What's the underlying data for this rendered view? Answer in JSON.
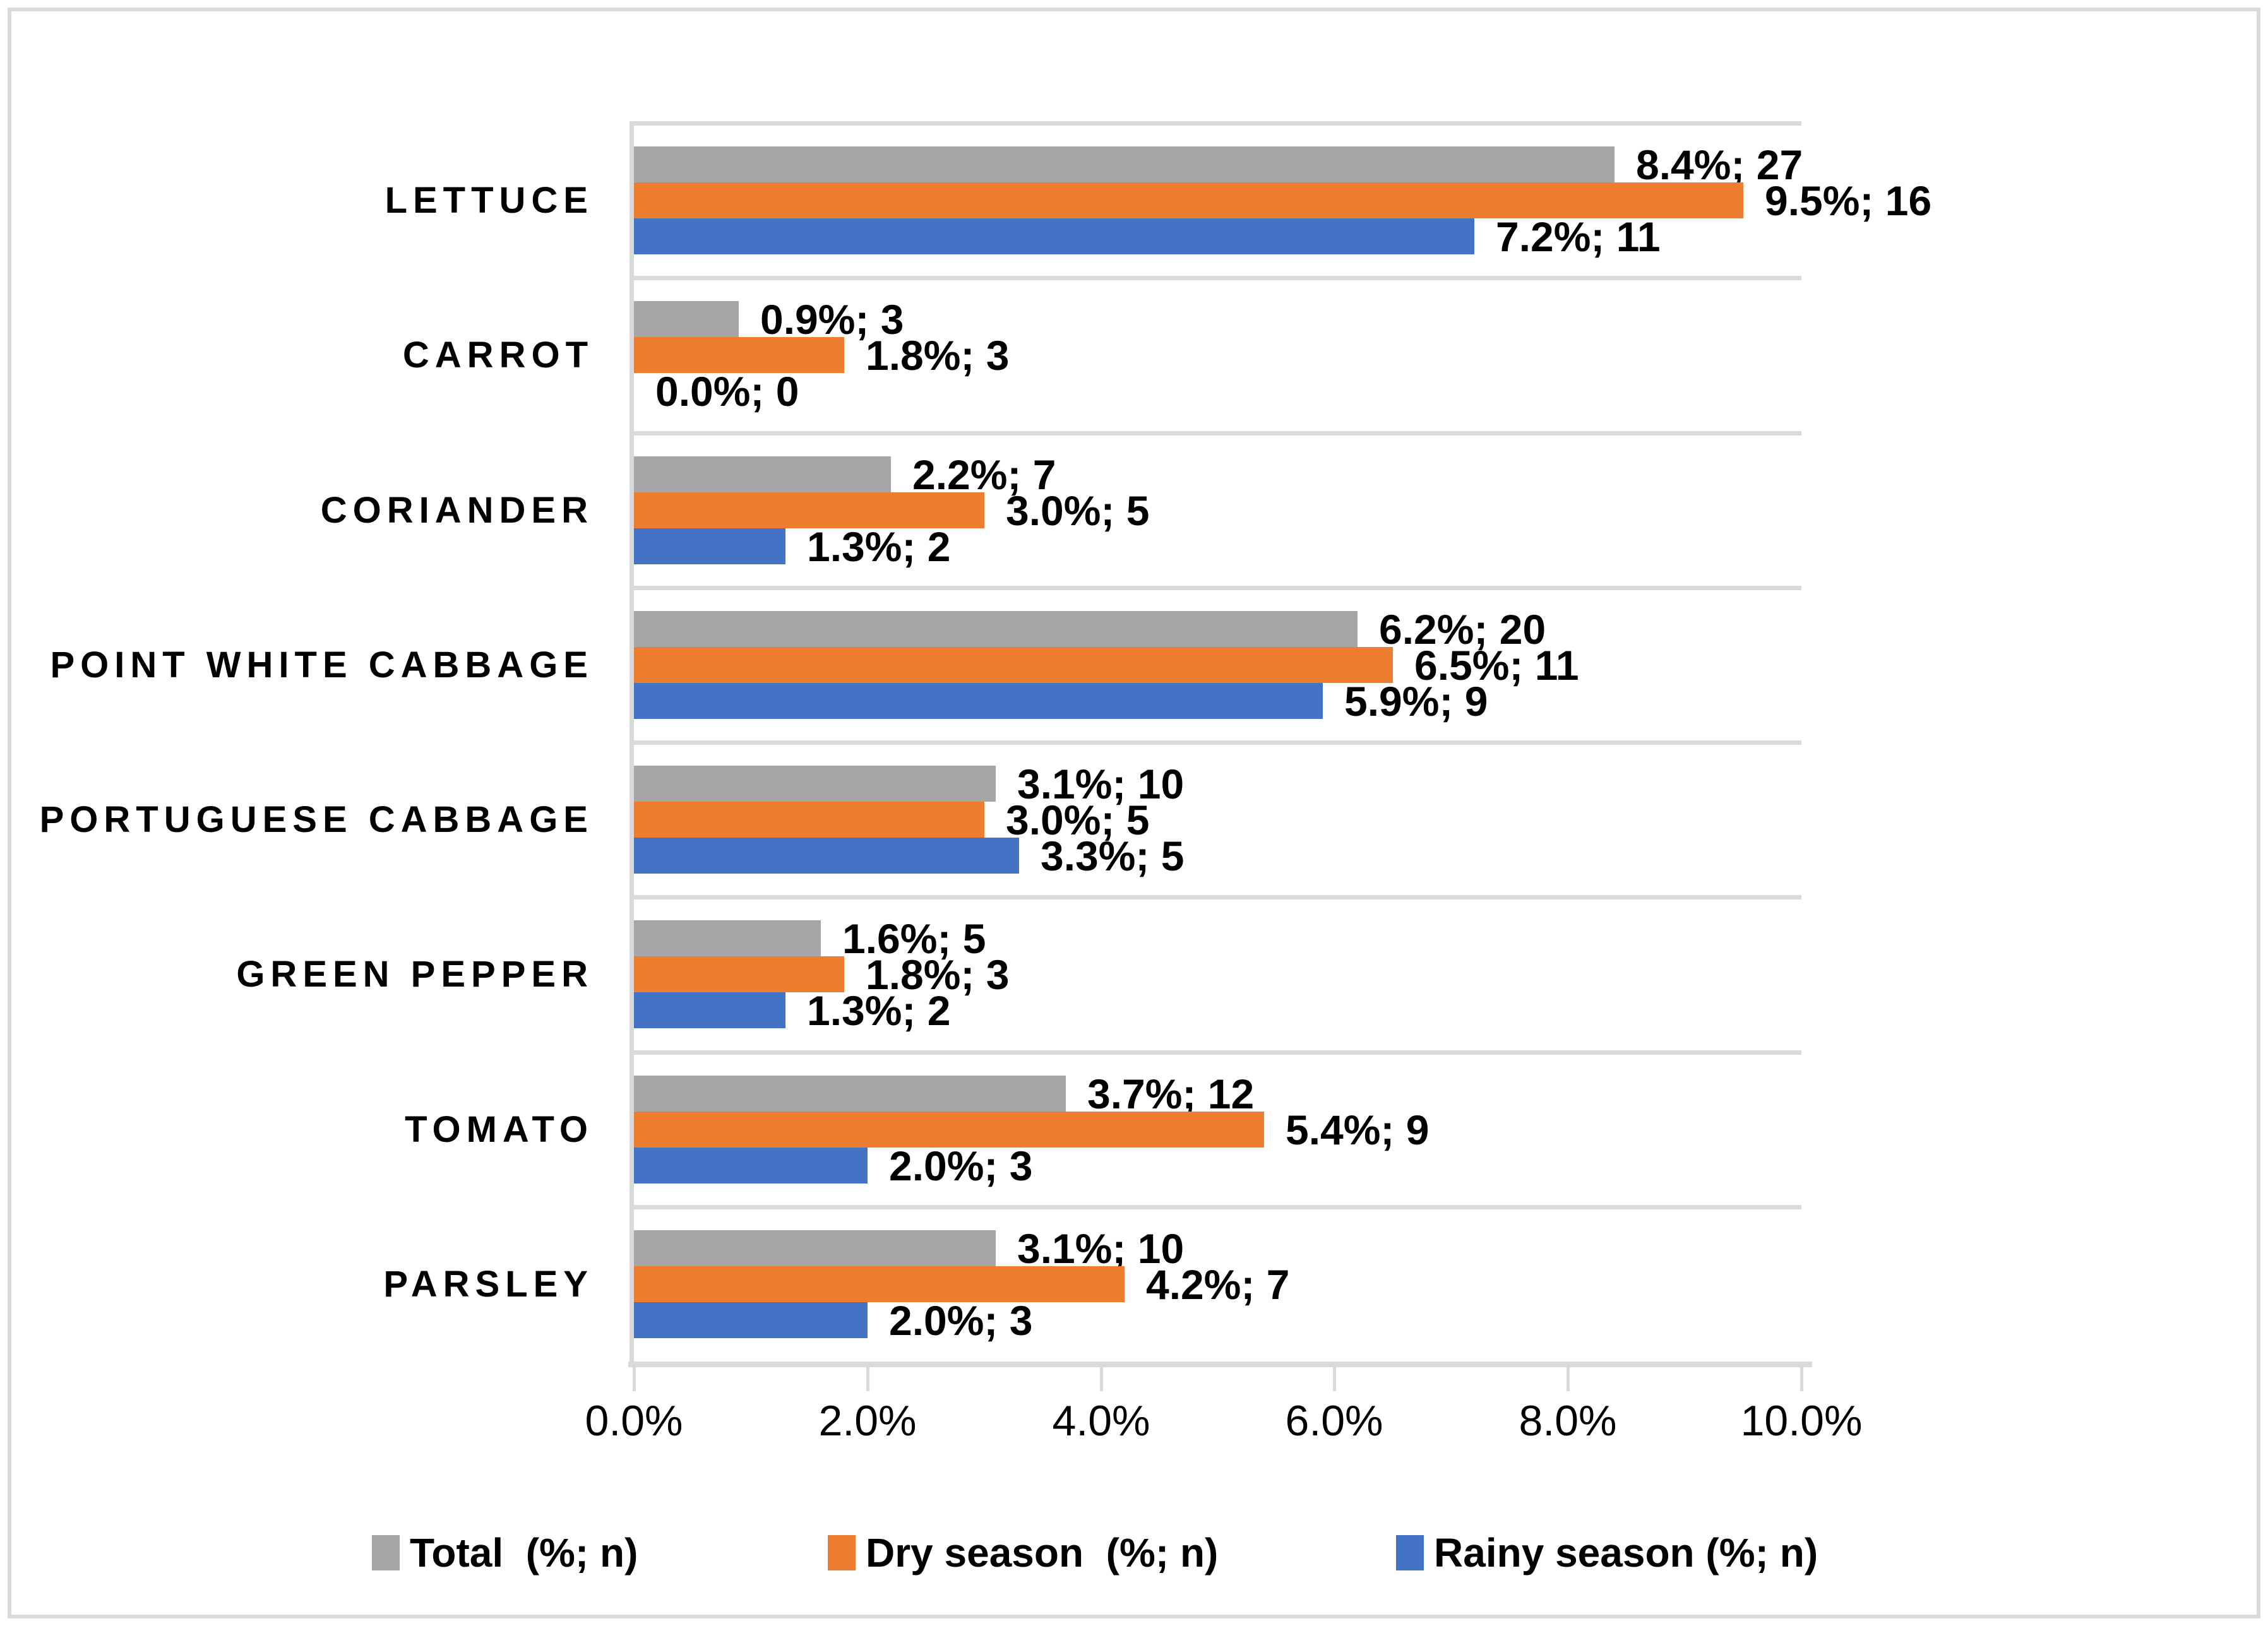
{
  "chart_data": {
    "type": "bar",
    "orientation": "horizontal",
    "title": "",
    "xlabel": "",
    "ylabel": "",
    "grid": "horizontal-category-separators-only",
    "legend_position": "bottom",
    "xlim": [
      0,
      10
    ],
    "x_ticks": [
      "0.0%",
      "2.0%",
      "4.0%",
      "6.0%",
      "8.0%",
      "10.0%"
    ],
    "x_tick_values": [
      0,
      2,
      4,
      6,
      8,
      10
    ],
    "categories": [
      "LETTUCE",
      "CARROT",
      "CORIANDER",
      "POINT WHITE CABBAGE",
      "PORTUGUESE CABBAGE",
      "GREEN PEPPER",
      "TOMATO",
      "PARSLEY"
    ],
    "series": [
      {
        "name": "Total  (%; n)",
        "color": "#a6a6a6",
        "values": [
          8.4,
          0.9,
          2.2,
          6.2,
          3.1,
          1.6,
          3.7,
          3.1
        ],
        "counts": [
          27,
          3,
          7,
          20,
          10,
          5,
          12,
          10
        ],
        "labels": [
          "8.4%; 27",
          "0.9%; 3",
          "2.2%; 7",
          "6.2%; 20",
          "3.1%; 10",
          "1.6%; 5",
          "3.7%; 12",
          "3.1%; 10"
        ]
      },
      {
        "name": "Dry season  (%; n)",
        "color": "#ed7d31",
        "values": [
          9.5,
          1.8,
          3.0,
          6.5,
          3.0,
          1.8,
          5.4,
          4.2
        ],
        "counts": [
          16,
          3,
          5,
          11,
          5,
          3,
          9,
          7
        ],
        "labels": [
          "9.5%; 16",
          "1.8%; 3",
          "3.0%; 5",
          "6.5%; 11",
          "3.0%; 5",
          "1.8%; 3",
          "5.4%; 9",
          "4.2%; 7"
        ]
      },
      {
        "name": "Rainy season (%; n)",
        "color": "#4472c4",
        "values": [
          7.2,
          0.0,
          1.3,
          5.9,
          3.3,
          1.3,
          2.0,
          2.0
        ],
        "counts": [
          11,
          0,
          2,
          9,
          5,
          2,
          3,
          3
        ],
        "labels": [
          "7.2%; 11",
          "0.0%; 0",
          "1.3%; 2",
          "5.9%; 9",
          "3.3%; 5",
          "1.3%; 2",
          "2.0%; 3",
          "2.0%; 3"
        ]
      }
    ],
    "colors": {
      "gridline": "#d9d9d9",
      "border": "#d9d9d9",
      "text": "#000000",
      "background": "#ffffff"
    }
  }
}
